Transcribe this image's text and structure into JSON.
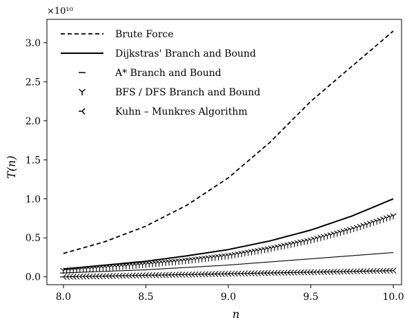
{
  "chart_data": {
    "type": "line",
    "xlabel": "n",
    "ylabel": "T(n)",
    "y_scale_label": "×10¹⁰",
    "xlim": [
      7.9,
      10.05
    ],
    "ylim": [
      -0.1,
      3.3
    ],
    "x_ticks": [
      8.0,
      8.5,
      9.0,
      9.5,
      10.0
    ],
    "x_tick_labels": [
      "8.0",
      "8.5",
      "9.0",
      "9.5",
      "10.0"
    ],
    "y_ticks": [
      0.0,
      0.5,
      1.0,
      1.5,
      2.0,
      2.5,
      3.0
    ],
    "y_tick_labels": [
      "0.0",
      "0.5",
      "1.0",
      "1.5",
      "2.0",
      "2.5",
      "3.0"
    ],
    "grid": false,
    "legend_position": "top-left",
    "x": [
      8.0,
      8.25,
      8.5,
      8.75,
      9.0,
      9.25,
      9.5,
      9.75,
      10.0
    ],
    "series": [
      {
        "name": "Brute Force",
        "style": "dashed",
        "values": [
          0.3,
          0.45,
          0.65,
          0.92,
          1.27,
          1.72,
          2.25,
          2.7,
          3.15
        ]
      },
      {
        "name": "Dijkstras' Branch and Bound",
        "style": "solid",
        "values": [
          0.1,
          0.15,
          0.2,
          0.27,
          0.35,
          0.46,
          0.6,
          0.78,
          1.0
        ]
      },
      {
        "name": "A* Branch and Bound",
        "style": "marker-tickleft",
        "values": [
          0.05,
          0.07,
          0.09,
          0.12,
          0.15,
          0.19,
          0.23,
          0.27,
          0.31
        ]
      },
      {
        "name": "BFS / DFS Branch and Bound",
        "style": "marker-tri-down",
        "values": [
          0.08,
          0.12,
          0.16,
          0.21,
          0.27,
          0.36,
          0.47,
          0.61,
          0.78
        ]
      },
      {
        "name": "Kuhn – Munkres Algorithm",
        "style": "marker-tri-left",
        "values": [
          0.0,
          0.01,
          0.02,
          0.03,
          0.04,
          0.05,
          0.06,
          0.07,
          0.08
        ]
      }
    ]
  },
  "legend": {
    "entries": [
      "Brute Force",
      "Dijkstras' Branch and Bound",
      "A* Branch and Bound",
      "BFS / DFS Branch and Bound",
      "Kuhn – Munkres Algorithm"
    ]
  }
}
